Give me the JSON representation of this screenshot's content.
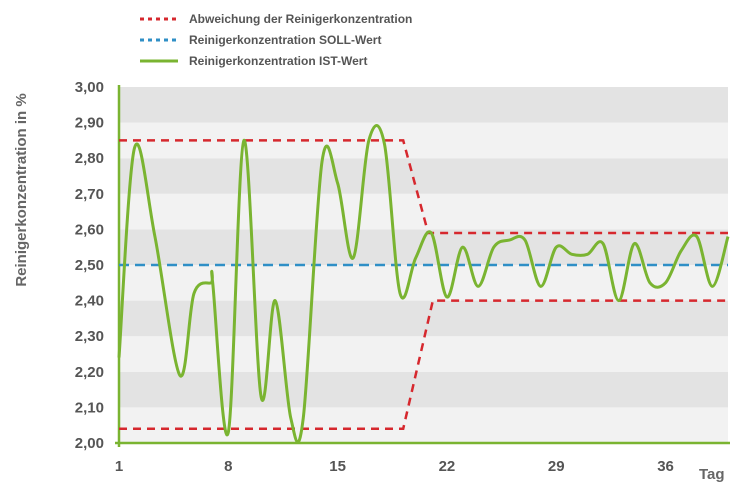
{
  "chart_data": {
    "type": "line",
    "ylabel": "Reinigerkonzentration in %",
    "xlabel": "Tag",
    "ylim": [
      2.0,
      3.0
    ],
    "xlim": [
      1,
      40
    ],
    "x_ticks": [
      1,
      8,
      15,
      22,
      29,
      36
    ],
    "y_ticks": [
      "2,00",
      "2,10",
      "2,20",
      "2,30",
      "2,40",
      "2,50",
      "2,60",
      "2,70",
      "2,80",
      "2,90",
      "3,00"
    ],
    "grid": "alternating horizontal bands",
    "legend_position": "top-left",
    "legend": [
      "Abweichung der Reinigerkonzentration",
      "Reinigerkonzentration SOLL-Wert",
      "Reinigerkonzentration IST-Wert"
    ],
    "series": [
      {
        "name": "Abweichung der Reinigerkonzentration",
        "style": "dotted",
        "color": "#d6282e",
        "x": [
          1,
          19.2,
          20.8,
          40
        ],
        "y": [
          2.85,
          2.85,
          2.59,
          2.59
        ]
      },
      {
        "name": "Abweichung der Reinigerkonzentration",
        "style": "dotted",
        "color": "#d6282e",
        "x": [
          1,
          19.2,
          21.1,
          40
        ],
        "y": [
          2.04,
          2.04,
          2.4,
          2.4
        ]
      },
      {
        "name": "Reinigerkonzentration SOLL-Wert",
        "style": "dashed",
        "color": "#2f8fc6",
        "x": [
          1,
          40
        ],
        "y": [
          2.5,
          2.5
        ]
      },
      {
        "name": "Reinigerkonzentration IST-Wert",
        "style": "solid",
        "color": "#7ab431",
        "x": [
          1.0,
          2.0,
          3.3,
          4.9,
          5.8,
          6.9,
          7.0,
          8.0,
          9.0,
          10.1,
          11.0,
          12.0,
          12.8,
          14.0,
          15.0,
          16.0,
          17.0,
          18.0,
          19.0,
          20.0,
          21.0,
          22.0,
          23.0,
          24.0,
          25.0,
          26.0,
          27.0,
          28.0,
          29.0,
          30.0,
          31.0,
          32.0,
          33.0,
          34.0,
          35.0,
          36.0,
          37.0,
          38.0,
          39.0,
          40.0
        ],
        "y": [
          2.24,
          2.83,
          2.58,
          2.19,
          2.42,
          2.45,
          2.45,
          2.03,
          2.85,
          2.13,
          2.4,
          2.07,
          2.07,
          2.79,
          2.73,
          2.52,
          2.85,
          2.84,
          2.42,
          2.52,
          2.59,
          2.41,
          2.55,
          2.44,
          2.55,
          2.57,
          2.57,
          2.44,
          2.55,
          2.53,
          2.53,
          2.56,
          2.4,
          2.56,
          2.45,
          2.45,
          2.54,
          2.58,
          2.44,
          2.58
        ]
      }
    ]
  },
  "colors": {
    "band_dark": "#e3e3e3",
    "band_light": "#f2f2f2",
    "axis": "#7ab431",
    "deviation": "#d6282e",
    "target": "#2f8fc6",
    "actual": "#7ab431"
  }
}
